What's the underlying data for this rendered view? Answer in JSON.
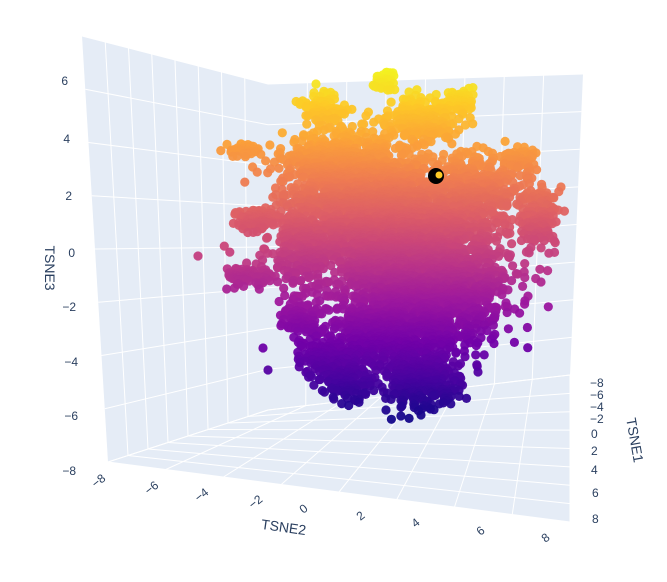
{
  "chart_data": {
    "type": "scatter3d",
    "colorscale": [
      "#0d0887",
      "#46039f",
      "#7201a8",
      "#9c179e",
      "#bd3786",
      "#d8576b",
      "#ed7953",
      "#fb9f3a",
      "#fdca26",
      "#f0f921"
    ],
    "background_color": "#e5ecf6",
    "grid": true,
    "axes": {
      "x": {
        "title": "TSNE1",
        "ticks": [
          "−8",
          "−6",
          "−4",
          "−2",
          "0",
          "2",
          "4",
          "6",
          "8"
        ],
        "range": [
          -8,
          8
        ]
      },
      "y": {
        "title": "TSNE2",
        "ticks": [
          "−8",
          "−6",
          "−4",
          "−2",
          "0",
          "2",
          "4",
          "6",
          "8"
        ],
        "range": [
          -8,
          8
        ]
      },
      "z": {
        "title": "TSNE3",
        "ticks": [
          "−8",
          "−6",
          "−4",
          "−2",
          "0",
          "2",
          "4",
          "6"
        ],
        "range": [
          -8,
          7
        ]
      }
    },
    "highlight": {
      "x": 0,
      "y": 4.8,
      "z": 3.8,
      "color": "#000000"
    },
    "color_by": "TSNE3",
    "points_description": "approximately 8000 points forming a dense cloud centered near the origin"
  }
}
